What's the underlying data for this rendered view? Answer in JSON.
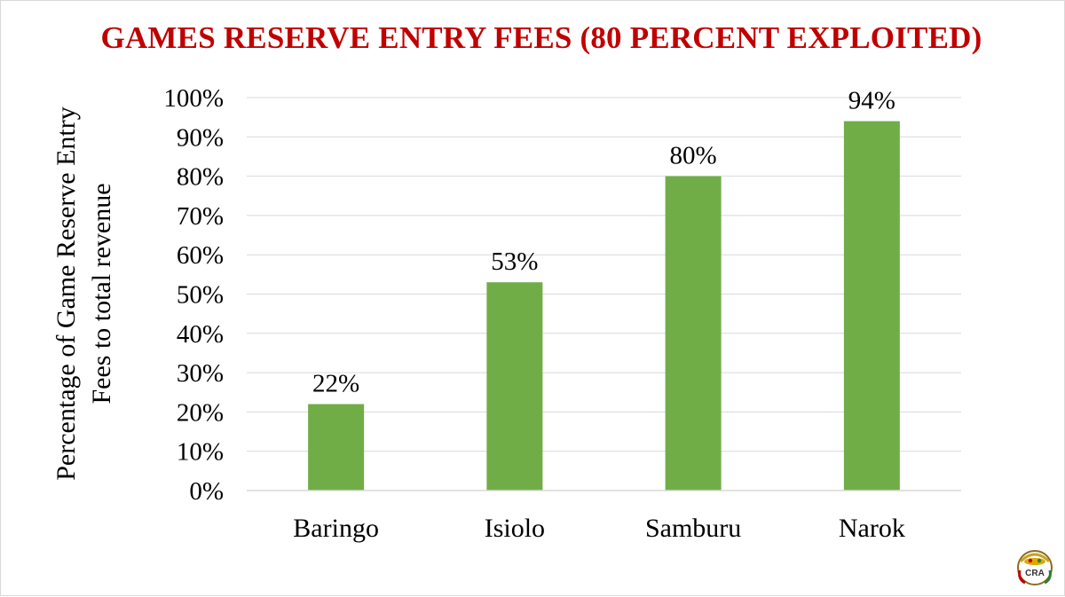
{
  "chart_data": {
    "type": "bar",
    "title": "GAMES RESERVE ENTRY FEES (80 PERCENT EXPLOITED)",
    "xlabel": "",
    "ylabel": "Percentage of Game Reserve Entry Fees to total revenue",
    "categories": [
      "Baringo",
      "Isiolo",
      "Samburu",
      "Narok"
    ],
    "values": [
      22,
      53,
      80,
      94
    ],
    "data_labels": [
      "22%",
      "53%",
      "80%",
      "94%"
    ],
    "ylim": [
      0,
      100
    ],
    "yticks": [
      "0%",
      "10%",
      "20%",
      "30%",
      "40%",
      "50%",
      "60%",
      "70%",
      "80%",
      "90%",
      "100%"
    ],
    "grid": true,
    "legend": "none",
    "bar_color": "#70ad47"
  },
  "colors": {
    "title": "#c00000",
    "gridline": "#d9d9d9",
    "text": "#000000"
  },
  "logo": {
    "icon": "cra-logo-icon",
    "text": "CRA"
  }
}
